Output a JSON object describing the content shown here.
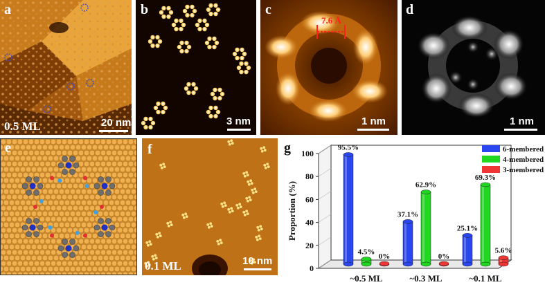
{
  "panels": {
    "a": {
      "label": "a",
      "coverage": "0.5 ML",
      "scale": "20 nm"
    },
    "b": {
      "label": "b",
      "scale": "3 nm"
    },
    "c": {
      "label": "c",
      "distance": "7.6 Å",
      "scale": "1 nm"
    },
    "d": {
      "label": "d",
      "scale": "1 nm"
    },
    "e": {
      "label": "e"
    },
    "f": {
      "label": "f",
      "coverage": "0.1 ML",
      "scale": "10 nm"
    },
    "g": {
      "label": "g"
    }
  },
  "colors": {
    "six": "#2a46f0",
    "four": "#1fd81f",
    "three": "#f03535",
    "stm_dark": "#2a0f00",
    "stm_mid": "#b5620f",
    "stm_bright": "#ffe07a"
  },
  "chart_data": {
    "type": "bar",
    "categories": [
      "~0.5 ML",
      "~0.3 ML",
      "~0.1 ML"
    ],
    "series": [
      {
        "name": "6-membered",
        "values": [
          95.5,
          37.1,
          25.1
        ],
        "labels": [
          "95.5%",
          "37.1%",
          "25.1%"
        ]
      },
      {
        "name": "4-membered",
        "values": [
          4.5,
          62.9,
          69.3
        ],
        "labels": [
          "4.5%",
          "62.9%",
          "69.3%"
        ]
      },
      {
        "name": "3-membered",
        "values": [
          0,
          0,
          5.6
        ],
        "labels": [
          "0%",
          "0%",
          "5.6%"
        ]
      }
    ],
    "ylabel": "Proportion (%)",
    "ylim": [
      0,
      100
    ],
    "yticks": [
      "0",
      "20",
      "40",
      "60",
      "80",
      "100"
    ],
    "legend": "top-right",
    "style": "3d-cylinders"
  }
}
